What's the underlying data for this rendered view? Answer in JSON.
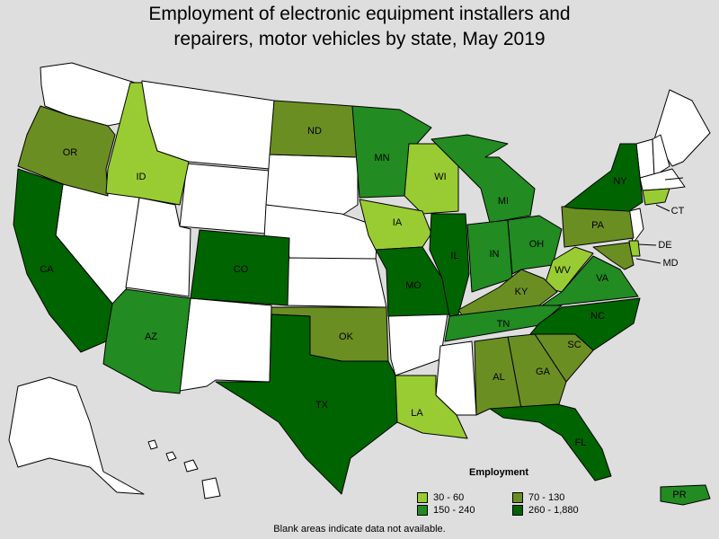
{
  "title_line1": "Employment of electronic equipment installers and",
  "title_line2": "repairers, motor vehicles by state, May 2019",
  "legend": {
    "title": "Employment",
    "items": [
      {
        "label": "30 - 60",
        "color": "#99cc33"
      },
      {
        "label": "70 - 130",
        "color": "#6b8e23"
      },
      {
        "label": "150 - 240",
        "color": "#228b22"
      },
      {
        "label": "260 - 1,880",
        "color": "#006400"
      }
    ]
  },
  "footnote": "Blank areas indicate data not available.",
  "colors": {
    "no_data": "#ffffff",
    "background": "#dedede"
  },
  "states": [
    {
      "label": "OR",
      "cls": "70 - 130"
    },
    {
      "label": "ID",
      "cls": "30 - 60"
    },
    {
      "label": "CA",
      "cls": "260 - 1,880"
    },
    {
      "label": "AZ",
      "cls": "150 - 240"
    },
    {
      "label": "CO",
      "cls": "260 - 1,880"
    },
    {
      "label": "ND",
      "cls": "70 - 130"
    },
    {
      "label": "MN",
      "cls": "150 - 240"
    },
    {
      "label": "WI",
      "cls": "30 - 60"
    },
    {
      "label": "IA",
      "cls": "30 - 60"
    },
    {
      "label": "MO",
      "cls": "260 - 1,880"
    },
    {
      "label": "IL",
      "cls": "260 - 1,880"
    },
    {
      "label": "MI",
      "cls": "150 - 240"
    },
    {
      "label": "IN",
      "cls": "150 - 240"
    },
    {
      "label": "OH",
      "cls": "150 - 240"
    },
    {
      "label": "PA",
      "cls": "70 - 130"
    },
    {
      "label": "NY",
      "cls": "260 - 1,880"
    },
    {
      "label": "CT",
      "cls": "30 - 60"
    },
    {
      "label": "DE",
      "cls": "30 - 60"
    },
    {
      "label": "MD",
      "cls": "70 - 130"
    },
    {
      "label": "WV",
      "cls": "30 - 60"
    },
    {
      "label": "VA",
      "cls": "150 - 240"
    },
    {
      "label": "KY",
      "cls": "70 - 130"
    },
    {
      "label": "TN",
      "cls": "150 - 240"
    },
    {
      "label": "NC",
      "cls": "260 - 1,880"
    },
    {
      "label": "SC",
      "cls": "70 - 130"
    },
    {
      "label": "GA",
      "cls": "70 - 130"
    },
    {
      "label": "AL",
      "cls": "70 - 130"
    },
    {
      "label": "FL",
      "cls": "260 - 1,880"
    },
    {
      "label": "OK",
      "cls": "70 - 130"
    },
    {
      "label": "TX",
      "cls": "260 - 1,880"
    },
    {
      "label": "LA",
      "cls": "30 - 60"
    },
    {
      "label": "PR",
      "cls": "150 - 240"
    }
  ]
}
